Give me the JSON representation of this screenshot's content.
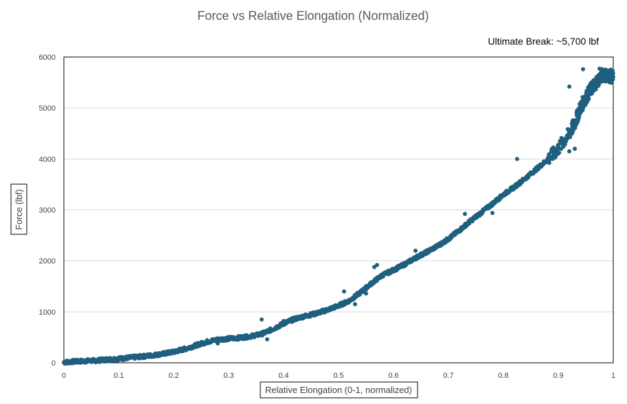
{
  "chart_data": {
    "type": "scatter",
    "title": "Force vs Relative Elongation (Normalized)",
    "annotation": "Ultimate Break: ~5,700 lbf",
    "xlabel": "Relative Elongation (0-1, normalized)",
    "ylabel": "Force (lbf)",
    "xlim": [
      0,
      1
    ],
    "ylim": [
      0,
      6000
    ],
    "x_ticks": [
      "0",
      "0.1",
      "0.2",
      "0.3",
      "0.4",
      "0.5",
      "0.6",
      "0.7",
      "0.8",
      "0.9",
      "1"
    ],
    "y_ticks": [
      "0",
      "1000",
      "2000",
      "3000",
      "4000",
      "5000",
      "6000"
    ],
    "grid": "horizontal",
    "legend": "none",
    "marker_color": "#1f5f7f",
    "series": [
      {
        "curve": [
          [
            0,
            10
          ],
          [
            0.02,
            25
          ],
          [
            0.04,
            35
          ],
          [
            0.06,
            45
          ],
          [
            0.08,
            65
          ],
          [
            0.1,
            80
          ],
          [
            0.12,
            100
          ],
          [
            0.14,
            120
          ],
          [
            0.16,
            145
          ],
          [
            0.18,
            175
          ],
          [
            0.2,
            215
          ],
          [
            0.22,
            270
          ],
          [
            0.24,
            340
          ],
          [
            0.26,
            410
          ],
          [
            0.28,
            455
          ],
          [
            0.3,
            475
          ],
          [
            0.32,
            490
          ],
          [
            0.34,
            520
          ],
          [
            0.36,
            565
          ],
          [
            0.38,
            660
          ],
          [
            0.4,
            770
          ],
          [
            0.42,
            860
          ],
          [
            0.44,
            920
          ],
          [
            0.46,
            970
          ],
          [
            0.48,
            1040
          ],
          [
            0.5,
            1120
          ],
          [
            0.52,
            1220
          ],
          [
            0.54,
            1380
          ],
          [
            0.56,
            1560
          ],
          [
            0.58,
            1720
          ],
          [
            0.6,
            1820
          ],
          [
            0.62,
            1930
          ],
          [
            0.64,
            2060
          ],
          [
            0.66,
            2170
          ],
          [
            0.68,
            2290
          ],
          [
            0.7,
            2430
          ],
          [
            0.72,
            2600
          ],
          [
            0.74,
            2780
          ],
          [
            0.76,
            2950
          ],
          [
            0.78,
            3120
          ],
          [
            0.8,
            3300
          ],
          [
            0.82,
            3450
          ],
          [
            0.84,
            3620
          ],
          [
            0.86,
            3800
          ],
          [
            0.88,
            3980
          ],
          [
            0.9,
            4200
          ],
          [
            0.92,
            4500
          ],
          [
            0.93,
            4700
          ],
          [
            0.94,
            5000
          ],
          [
            0.95,
            5200
          ],
          [
            0.96,
            5380
          ],
          [
            0.97,
            5520
          ],
          [
            0.98,
            5650
          ],
          [
            0.99,
            5640
          ],
          [
            1.0,
            5610
          ]
        ],
        "outliers": [
          [
            0.36,
            850
          ],
          [
            0.37,
            460
          ],
          [
            0.4,
            820
          ],
          [
            0.28,
            380
          ],
          [
            0.51,
            1400
          ],
          [
            0.53,
            1150
          ],
          [
            0.55,
            1360
          ],
          [
            0.57,
            1920
          ],
          [
            0.565,
            1880
          ],
          [
            0.64,
            2200
          ],
          [
            0.73,
            2920
          ],
          [
            0.78,
            2940
          ],
          [
            0.825,
            4000
          ],
          [
            0.92,
            4150
          ],
          [
            0.93,
            4200
          ],
          [
            0.92,
            5420
          ],
          [
            0.945,
            5760
          ],
          [
            0.975,
            5770
          ]
        ]
      }
    ]
  }
}
